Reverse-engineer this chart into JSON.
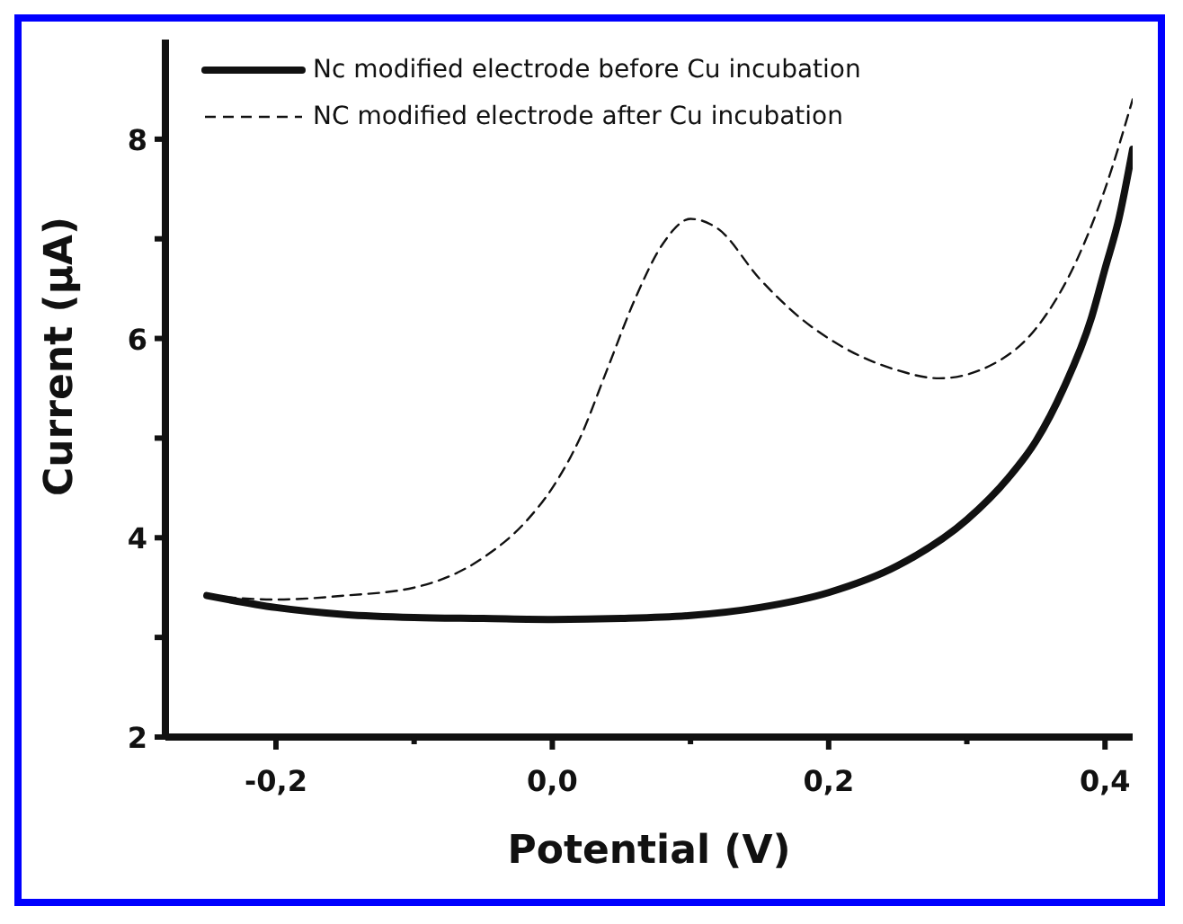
{
  "chart_data": {
    "type": "line",
    "xlabel": "Potential (V)",
    "ylabel": "Current (μA)",
    "xlim": [
      -0.28,
      0.42
    ],
    "ylim": [
      2,
      9
    ],
    "xticks": [
      {
        "value": -0.2,
        "label": "-0,2"
      },
      {
        "value": -0.1,
        "label": null
      },
      {
        "value": 0,
        "label": "0,0"
      },
      {
        "value": 0.1,
        "label": null
      },
      {
        "value": 0.2,
        "label": "0,2"
      },
      {
        "value": 0.3,
        "label": null
      },
      {
        "value": 0.4,
        "label": "0,4"
      }
    ],
    "yticks": [
      2,
      {
        "value": 3,
        "label": null
      },
      4,
      {
        "value": 5,
        "label": null
      },
      6,
      {
        "value": 7,
        "label": null
      },
      8
    ],
    "legend": "top left",
    "marker": "none",
    "series": [
      {
        "name": "Nc modified electrode before Cu incubation",
        "color": "#111111",
        "line_style": "solid",
        "x": [
          -0.25,
          -0.2,
          -0.15,
          -0.1,
          -0.05,
          0,
          0.05,
          0.1,
          0.15,
          0.2,
          0.25,
          0.3,
          0.33,
          0.35,
          0.37,
          0.39,
          0.4,
          0.41,
          0.42
        ],
        "values": [
          3.42,
          3.3,
          3.23,
          3.2,
          3.19,
          3.18,
          3.19,
          3.22,
          3.3,
          3.45,
          3.72,
          4.18,
          4.6,
          4.97,
          5.5,
          6.2,
          6.7,
          7.2,
          7.9
        ]
      },
      {
        "name": "NC modified electrode after Cu incubation",
        "color": "#111111",
        "line_style": "dashed",
        "x": [
          -0.25,
          -0.2,
          -0.15,
          -0.1,
          -0.05,
          -0.02,
          0,
          0.02,
          0.04,
          0.06,
          0.08,
          0.1,
          0.12,
          0.15,
          0.18,
          0.2,
          0.25,
          0.28,
          0.32,
          0.35,
          0.38,
          0.4,
          0.42
        ],
        "values": [
          3.42,
          3.38,
          3.42,
          3.5,
          3.8,
          4.15,
          4.5,
          5.0,
          5.7,
          6.4,
          6.95,
          7.2,
          7.1,
          6.6,
          6.2,
          6.0,
          5.68,
          5.6,
          5.75,
          6.1,
          6.8,
          7.5,
          8.4
        ]
      }
    ]
  }
}
